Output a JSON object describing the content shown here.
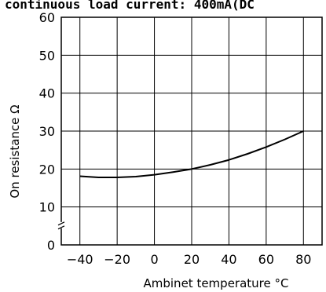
{
  "chart_data": {
    "type": "line",
    "title": "continuous load current: 400mA(DC",
    "xlabel": "Ambinet temperature °C",
    "ylabel": "On resistance Ω",
    "xlim": [
      -50,
      90
    ],
    "ylim": [
      0,
      60
    ],
    "x_ticks": [
      "−40",
      "−20",
      "0",
      "20",
      "40",
      "60",
      "80"
    ],
    "y_ticks": [
      "0",
      "10",
      "20",
      "30",
      "40",
      "50",
      "60"
    ],
    "grid": true,
    "axis_break_on_y": true,
    "series": [
      {
        "x": [
          -40,
          -30,
          -20,
          -10,
          0,
          10,
          20,
          30,
          40,
          50,
          60,
          70,
          80
        ],
        "y": [
          18.1,
          17.8,
          17.8,
          18.0,
          18.5,
          19.2,
          20.0,
          21.1,
          22.4,
          24.0,
          25.8,
          27.8,
          30.0
        ]
      }
    ],
    "colors": {
      "line": "#000000",
      "grid": "#000000",
      "background": "#ffffff"
    }
  }
}
